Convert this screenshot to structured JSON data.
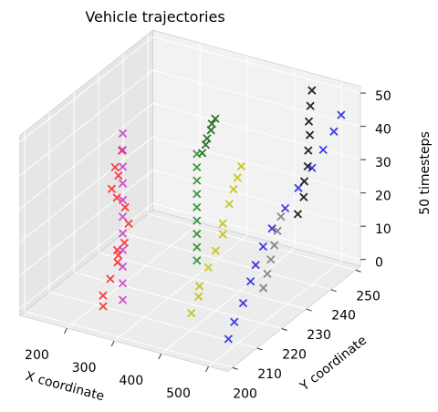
{
  "chart_data": {
    "type": "scatter3d",
    "title": "Vehicle trajectories",
    "x_label": "X coordinate",
    "y_label": "Y coordinate",
    "z_label": "50 timesteps",
    "xlim": [
      100,
      540
    ],
    "ylim": [
      198,
      252
    ],
    "zlim": [
      -2,
      52
    ],
    "xticks": [
      200,
      300,
      400,
      500
    ],
    "yticks": [
      200,
      210,
      220,
      230,
      240,
      250
    ],
    "zticks": [
      0,
      10,
      20,
      30,
      40,
      50
    ],
    "grid": true,
    "series": [
      {
        "color": "#ff2020",
        "x": [
          240,
          245,
          250,
          255,
          262,
          270,
          280,
          268,
          250,
          238,
          232,
          236,
          234,
          238
        ],
        "y": [
          205,
          204,
          206,
          208,
          207,
          205,
          206,
          210,
          212,
          211,
          210,
          212,
          211,
          213
        ],
        "z": [
          2,
          6,
          10,
          14,
          17,
          20,
          22,
          25,
          28,
          31,
          34,
          37,
          40,
          44
        ]
      },
      {
        "color": "#cc33cc",
        "x": [
          245,
          245,
          245,
          245,
          245,
          245,
          245,
          245,
          245,
          245,
          245
        ],
        "y": [
          212,
          212,
          212,
          212,
          212,
          212,
          212,
          212,
          212,
          212,
          212
        ],
        "z": [
          0,
          5,
          10,
          15,
          20,
          25,
          30,
          35,
          40,
          45,
          50
        ]
      },
      {
        "color": "#0b5e0b",
        "x": [
          330,
          332,
          335,
          338,
          340,
          342
        ],
        "y": [
          228,
          229,
          229,
          230,
          230,
          231
        ],
        "z": [
          38,
          40,
          42,
          44,
          46,
          47
        ]
      },
      {
        "color": "#1a8a1a",
        "x": [
          350,
          350,
          350,
          350,
          350,
          350,
          350,
          350,
          350
        ],
        "y": [
          222,
          222,
          222,
          222,
          222,
          222,
          222,
          222,
          222
        ],
        "z": [
          10,
          14,
          18,
          22,
          26,
          30,
          34,
          38,
          42
        ]
      },
      {
        "color": "#bfbf00",
        "x": [
          380,
          385,
          392,
          395,
          400,
          405,
          410,
          408,
          412,
          415,
          418
        ],
        "y": [
          214,
          216,
          215,
          218,
          220,
          222,
          221,
          224,
          225,
          226,
          227
        ],
        "z": [
          0,
          4,
          8,
          12,
          16,
          20,
          24,
          28,
          32,
          35,
          38
        ]
      },
      {
        "color": "#1f1fe0",
        "x": [
          490,
          492,
          495,
          490,
          485,
          480,
          478,
          485,
          492,
          500,
          508,
          515,
          520
        ],
        "y": [
          208,
          210,
          213,
          217,
          220,
          224,
          228,
          232,
          236,
          240,
          243,
          246,
          248
        ],
        "z": [
          0,
          4,
          8,
          12,
          15,
          18,
          21,
          25,
          29,
          33,
          37,
          41,
          45
        ]
      },
      {
        "color": "#000000",
        "x": [
          470,
          472,
          468,
          470,
          466,
          464,
          462,
          460,
          458
        ],
        "y": [
          240,
          242,
          243,
          244,
          245,
          246,
          246,
          247,
          248
        ],
        "z": [
          18,
          22,
          26,
          30,
          34,
          38,
          42,
          46,
          50
        ]
      },
      {
        "color": "#777777",
        "x": [
          470,
          468,
          465,
          462,
          458,
          455
        ],
        "y": [
          226,
          228,
          230,
          232,
          234,
          236
        ],
        "z": [
          4,
          7,
          10,
          13,
          16,
          19
        ]
      }
    ]
  }
}
